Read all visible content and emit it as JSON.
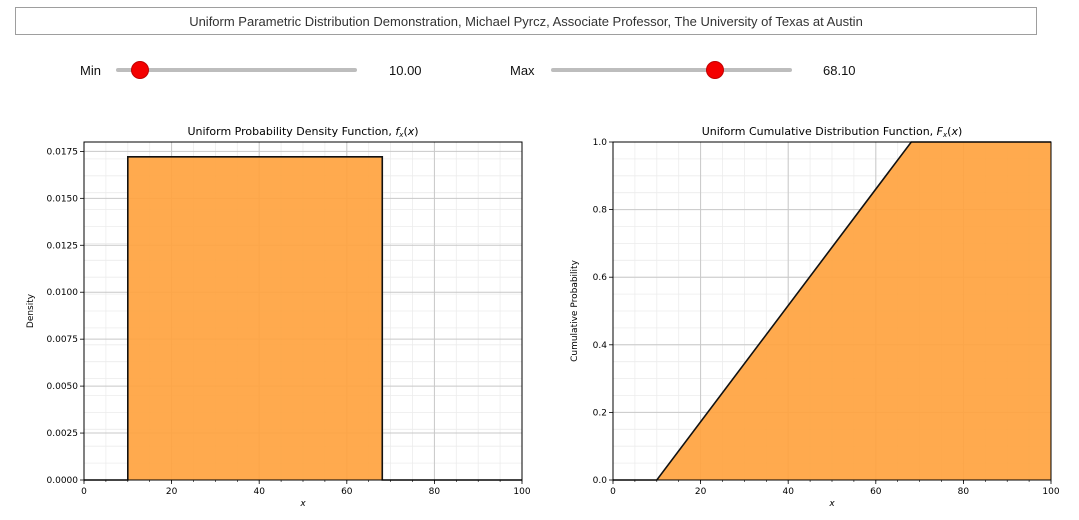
{
  "header": {
    "title": "Uniform Parametric Distribution Demonstration, Michael Pyrcz, Associate Professor, The University of Texas at Austin"
  },
  "controls": {
    "min": {
      "label": "Min",
      "value": 10.0,
      "value_text": "10.00",
      "range": [
        0,
        100
      ]
    },
    "max": {
      "label": "Max",
      "value": 68.1,
      "value_text": "68.10",
      "range": [
        0,
        100
      ]
    },
    "handle_color": "#f40000"
  },
  "chart_data": [
    {
      "type": "area",
      "name": "pdf",
      "title": "Uniform Probability Density Function, f",
      "title_fn": "f",
      "xlabel": "x",
      "ylabel": "Density",
      "xlim": [
        0,
        100
      ],
      "ylim": [
        0,
        0.018
      ],
      "xticks": [
        0,
        20,
        40,
        60,
        80,
        100
      ],
      "yticks": [
        "0.0000",
        "0.0025",
        "0.0050",
        "0.0075",
        "0.0100",
        "0.0125",
        "0.0150",
        "0.0175"
      ],
      "x": [
        0,
        10,
        10,
        68.1,
        68.1,
        100
      ],
      "y": [
        0,
        0,
        0.01721,
        0.01721,
        0,
        0
      ],
      "fill_color": "#ffa33f",
      "grid": true
    },
    {
      "type": "area",
      "name": "cdf",
      "title": "Uniform Cumulative Distribution Function, F",
      "title_fn": "F",
      "xlabel": "x",
      "ylabel": "Cumulative Probability",
      "xlim": [
        0,
        100
      ],
      "ylim": [
        0,
        1.0
      ],
      "xticks": [
        0,
        20,
        40,
        60,
        80,
        100
      ],
      "yticks": [
        "0.0",
        "0.2",
        "0.4",
        "0.6",
        "0.8",
        "1.0"
      ],
      "x": [
        0,
        10,
        68.1,
        100
      ],
      "y": [
        0,
        0,
        1.0,
        1.0
      ],
      "fill_color": "#ffa33f",
      "grid": true
    }
  ]
}
